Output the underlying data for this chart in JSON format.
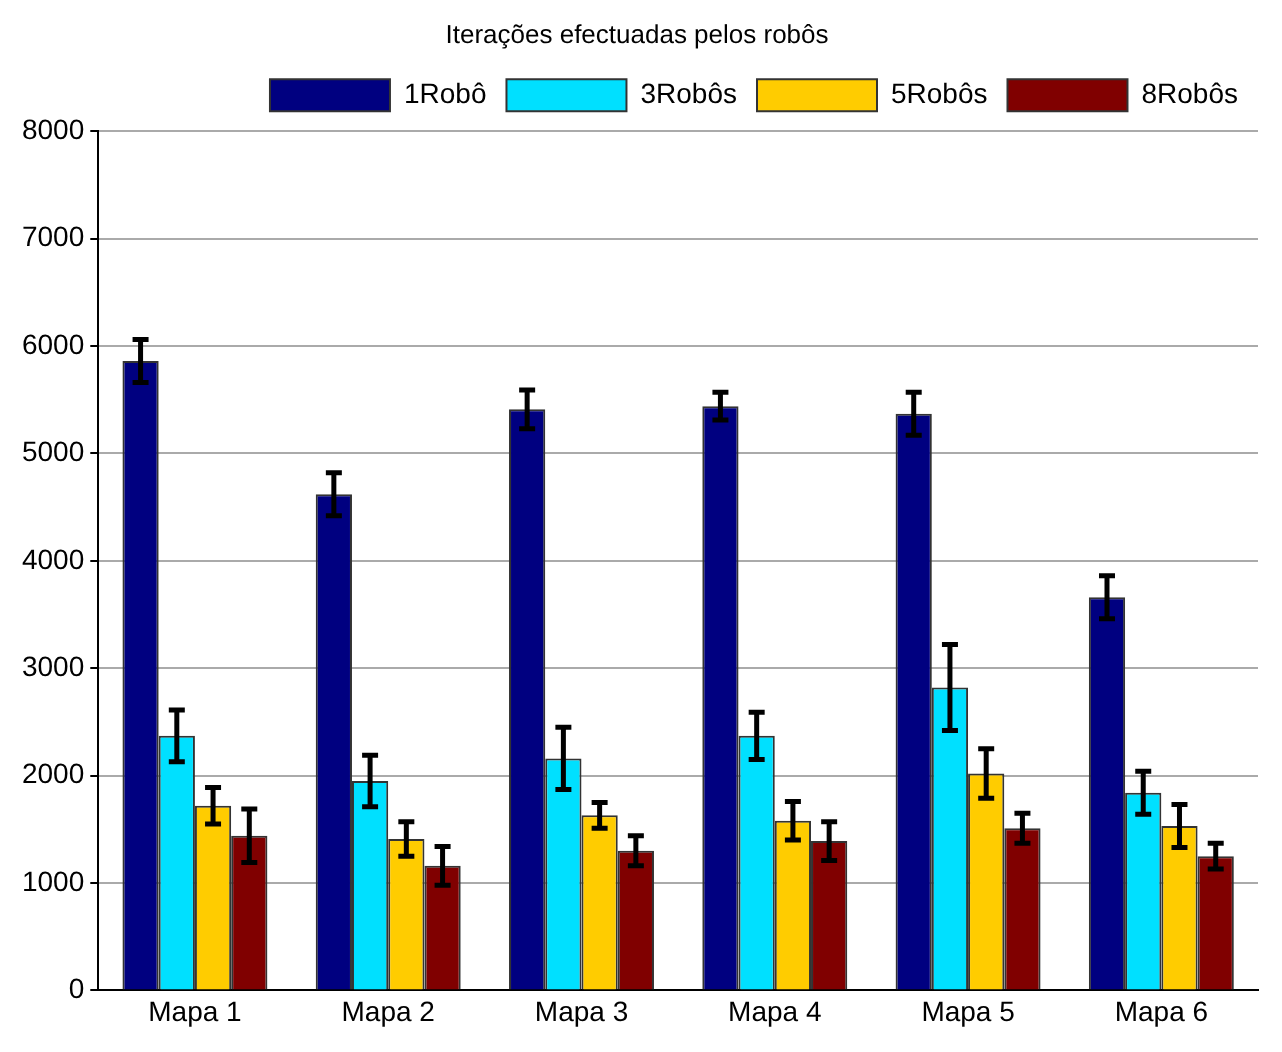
{
  "chart_data": {
    "type": "bar",
    "title": "Iterações efectuadas pelos robôs",
    "categories": [
      "Mapa 1",
      "Mapa 2",
      "Mapa 3",
      "Mapa 4",
      "Mapa 5",
      "Mapa 6"
    ],
    "series": [
      {
        "name": "1Robô",
        "color": "#000080",
        "values": [
          5860,
          4620,
          5410,
          5440,
          5370,
          3660
        ],
        "errors": [
          200,
          200,
          180,
          130,
          200,
          200
        ]
      },
      {
        "name": "3Robôs",
        "color": "#00e0ff",
        "values": [
          2370,
          1950,
          2160,
          2370,
          2820,
          1840
        ],
        "errors": [
          240,
          240,
          290,
          220,
          400,
          200
        ]
      },
      {
        "name": "5Robôs",
        "color": "#ffcc00",
        "values": [
          1720,
          1410,
          1630,
          1580,
          2020,
          1530
        ],
        "errors": [
          170,
          160,
          120,
          180,
          230,
          200
        ]
      },
      {
        "name": "8Robôs",
        "color": "#800000",
        "values": [
          1440,
          1160,
          1300,
          1390,
          1510,
          1250
        ],
        "errors": [
          250,
          180,
          140,
          180,
          140,
          120
        ]
      }
    ],
    "ylim": [
      0,
      8000
    ],
    "yticks": [
      0,
      1000,
      2000,
      3000,
      4000,
      5000,
      6000,
      7000,
      8000
    ],
    "grid": "y",
    "legend": "top right"
  }
}
